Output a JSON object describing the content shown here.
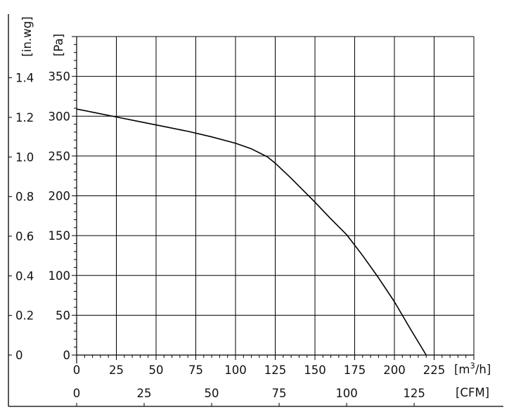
{
  "chart_data": {
    "type": "line",
    "title": "",
    "grid": true,
    "x_primary": {
      "unit_label": "[m",
      "unit_label_sup": "3",
      "unit_label_end": "/h]",
      "range": [
        0,
        250
      ],
      "ticks": [
        0,
        25,
        50,
        75,
        100,
        125,
        150,
        175,
        200,
        225
      ],
      "tick_labels": [
        "0",
        "25",
        "50",
        "75",
        "100",
        "125",
        "150",
        "175",
        "200",
        "225"
      ]
    },
    "x_secondary": {
      "unit_label": "[CFM]",
      "ticks": [
        0,
        25,
        50,
        75,
        100,
        125
      ],
      "tick_labels": [
        "0",
        "25",
        "50",
        "75",
        "100",
        "125"
      ]
    },
    "y_primary": {
      "unit_label": "[Pa]",
      "range": [
        0,
        400
      ],
      "ticks": [
        0,
        50,
        100,
        150,
        200,
        250,
        300,
        350
      ],
      "tick_labels": [
        "0",
        "50",
        "100",
        "150",
        "200",
        "250",
        "300",
        "350"
      ]
    },
    "y_secondary": {
      "unit_label": "[in.wg]",
      "ticks": [
        0,
        0.2,
        0.4,
        0.6,
        0.8,
        1.0,
        1.2,
        1.4
      ],
      "tick_labels": [
        "0",
        "0.2",
        "0.4",
        "0.6",
        "0.8",
        "1.0",
        "1.2",
        "1.4"
      ]
    },
    "series": [
      {
        "color": "#000000",
        "x": [
          0,
          10,
          25,
          40,
          55,
          70,
          85,
          100,
          110,
          120,
          125,
          135,
          150,
          160,
          170,
          180,
          190,
          200,
          210,
          220
        ],
        "y": [
          309,
          305,
          299,
          293,
          287,
          281,
          274,
          266,
          259,
          249,
          241,
          222,
          192,
          171,
          151,
          125,
          97,
          67,
          33,
          0
        ]
      }
    ]
  }
}
